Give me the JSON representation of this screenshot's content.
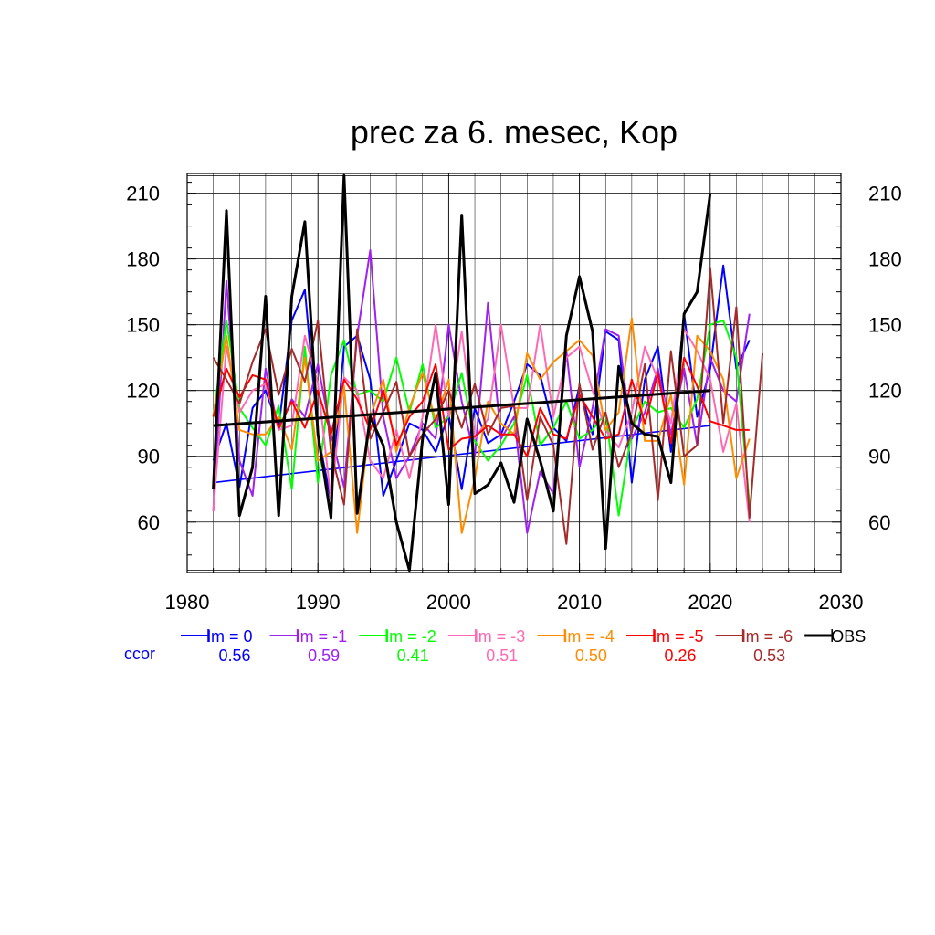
{
  "chart_data": {
    "type": "line",
    "title": "prec za 6. mesec, Kop",
    "xlim": [
      1980,
      2030
    ],
    "ylim": [
      37,
      219
    ],
    "x_ticks": [
      1980,
      1990,
      2000,
      2010,
      2020,
      2030
    ],
    "y_ticks": [
      60,
      90,
      120,
      150,
      180,
      210
    ],
    "grid": true,
    "legend_position": "bottom",
    "ccor_label": "ccor",
    "series": [
      {
        "name": "lm = 0",
        "color": "#0000ff",
        "ccor": "0.56",
        "x_start": 1982,
        "values": [
          88,
          105,
          76,
          112,
          120,
          103,
          152,
          166,
          100,
          70,
          140,
          145,
          125,
          72,
          88,
          105,
          102,
          92,
          109,
          75,
          112,
          96,
          100,
          115,
          132,
          127,
          103,
          97,
          122,
          100,
          147,
          143,
          78,
          125,
          140,
          92,
          155,
          108,
          130,
          177,
          130,
          143
        ],
        "trend": {
          "x": [
            1982,
            2020
          ],
          "y": [
            78,
            104
          ]
        }
      },
      {
        "name": "lm = -1",
        "color": "#a020f0",
        "ccor": "0.59",
        "x_start": 1982,
        "values": [
          65,
          170,
          88,
          72,
          130,
          102,
          116,
          108,
          132,
          100,
          76,
          145,
          184,
          108,
          80,
          90,
          105,
          98,
          150,
          115,
          90,
          160,
          98,
          108,
          55,
          83,
          73,
          138,
          85,
          112,
          148,
          145,
          98,
          110,
          130,
          100,
          130,
          95,
          135,
          120,
          115,
          155
        ]
      },
      {
        "name": "lm = -2",
        "color": "#00ff00",
        "ccor": "0.41",
        "x_start": 1982,
        "values": [
          108,
          152,
          112,
          103,
          95,
          113,
          75,
          140,
          78,
          127,
          143,
          118,
          120,
          115,
          135,
          110,
          132,
          103,
          108,
          128,
          97,
          88,
          95,
          105,
          127,
          95,
          103,
          115,
          98,
          102,
          110,
          63,
          102,
          115,
          110,
          112,
          103,
          116,
          150,
          152,
          135,
          68
        ]
      },
      {
        "name": "lm = -3",
        "color": "#ff69b4",
        "ccor": "0.51",
        "x_start": 1982,
        "values": [
          65,
          140,
          110,
          120,
          123,
          102,
          104,
          145,
          123,
          70,
          126,
          120,
          88,
          80,
          102,
          80,
          108,
          150,
          108,
          147,
          98,
          107,
          150,
          112,
          112,
          150,
          108,
          135,
          140,
          120,
          102,
          94,
          110,
          140,
          125,
          105,
          148,
          138,
          125,
          92,
          114,
          60
        ]
      },
      {
        "name": "lm = -4",
        "color": "#ff8c00",
        "ccor": "0.50",
        "x_start": 1982,
        "values": [
          108,
          145,
          102,
          100,
          100,
          108,
          93,
          135,
          88,
          92,
          122,
          55,
          108,
          125,
          92,
          112,
          128,
          106,
          125,
          55,
          80,
          115,
          105,
          100,
          137,
          125,
          133,
          138,
          143,
          136,
          102,
          110,
          153,
          97,
          97,
          118,
          77,
          145,
          138,
          125,
          80,
          98
        ]
      },
      {
        "name": "lm = -5",
        "color": "#ff0000",
        "ccor": "0.26",
        "x_start": 1982,
        "values": [
          108,
          130,
          117,
          127,
          125,
          103,
          115,
          103,
          120,
          100,
          125,
          116,
          102,
          120,
          95,
          108,
          115,
          132,
          93,
          98,
          99,
          104,
          100,
          100,
          90,
          112,
          100,
          98,
          118,
          108,
          98,
          100,
          125,
          105,
          128,
          96,
          135,
          122,
          106,
          104,
          102,
          102
        ]
      },
      {
        "name": "lm = -6",
        "color": "#a52a2a",
        "ccor": "0.53",
        "x_start": 1982,
        "values": [
          135,
          125,
          114,
          133,
          148,
          118,
          139,
          124,
          152,
          92,
          68,
          148,
          98,
          110,
          124,
          90,
          100,
          107,
          120,
          103,
          123,
          100,
          112,
          113,
          70,
          108,
          95,
          50,
          123,
          93,
          110,
          85,
          101,
          132,
          70,
          138,
          90,
          95,
          176,
          105,
          158,
          62,
          137
        ]
      },
      {
        "name": "OBS",
        "color": "#000000",
        "ccor": "",
        "x_start": 1982,
        "values": [
          75,
          202,
          63,
          85,
          163,
          63,
          163,
          197,
          100,
          62,
          218,
          64,
          108,
          95,
          60,
          38,
          98,
          128,
          68,
          200,
          73,
          77,
          87,
          69,
          107,
          88,
          65,
          145,
          172,
          147,
          48,
          131,
          105,
          100,
          99,
          78,
          155,
          165,
          210
        ],
        "trend": {
          "x": [
            1982,
            2020
          ],
          "y": [
            104,
            120
          ]
        }
      }
    ]
  }
}
